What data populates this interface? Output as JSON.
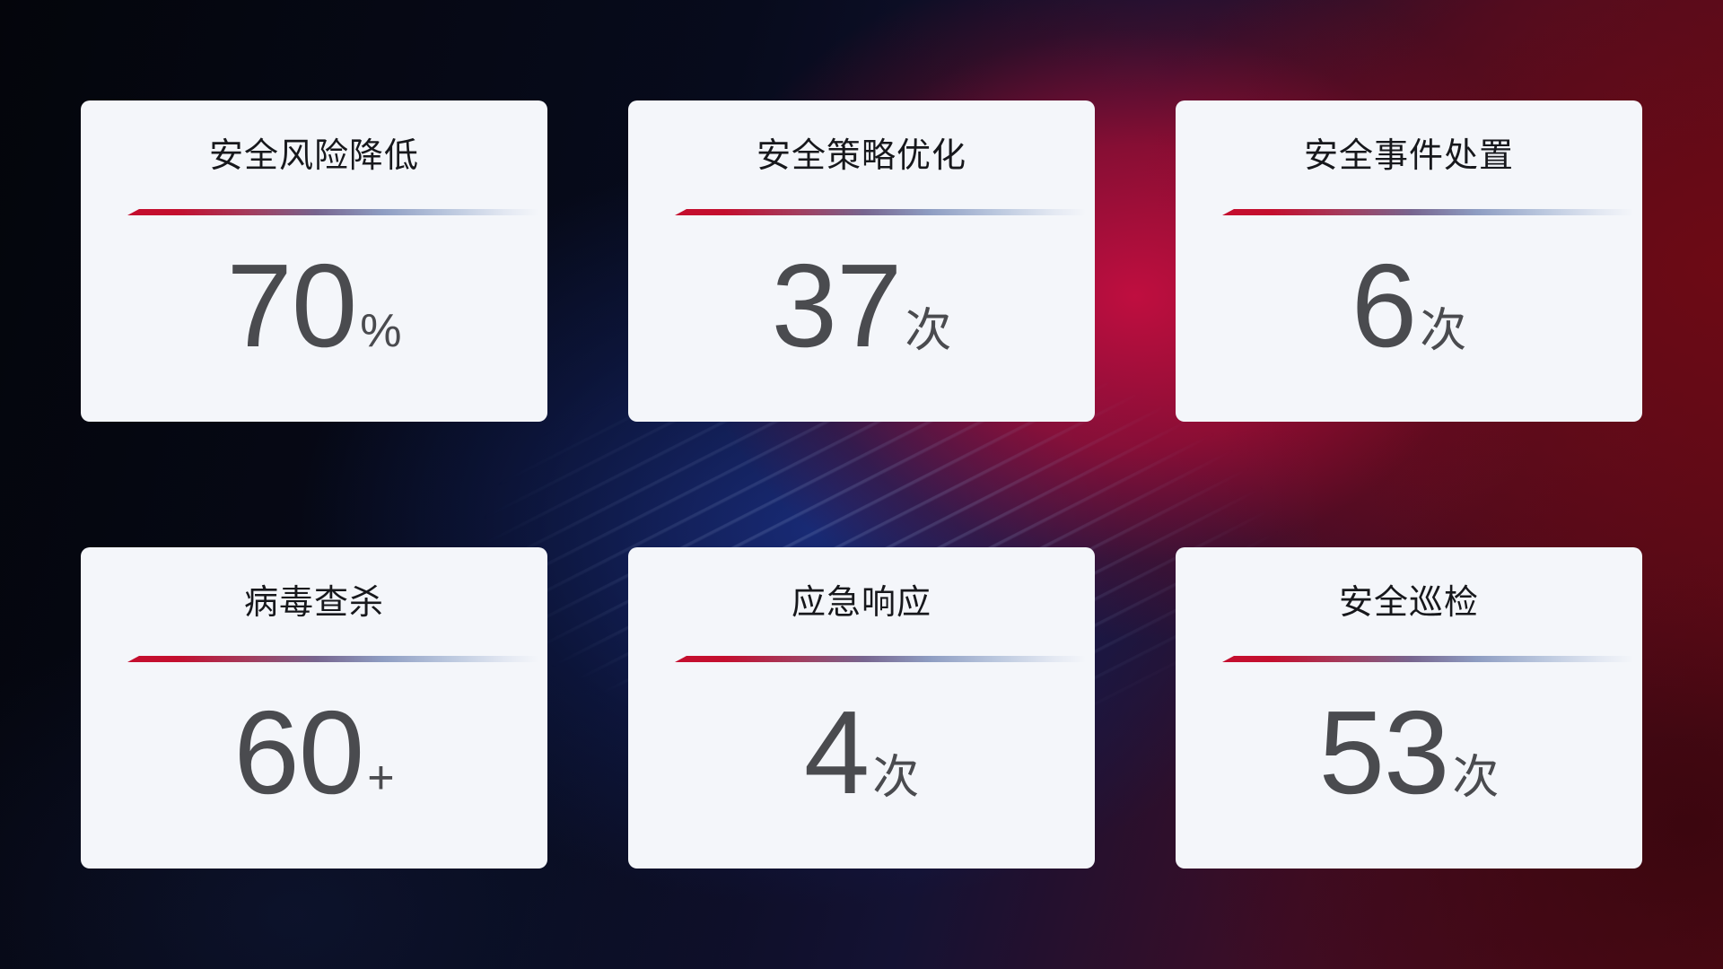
{
  "dashboard": {
    "cards": [
      {
        "title": "安全风险降低",
        "value": "70",
        "unit": "%"
      },
      {
        "title": "安全策略优化",
        "value": "37",
        "unit": "次"
      },
      {
        "title": "安全事件处置",
        "value": "6",
        "unit": "次"
      },
      {
        "title": "病毒查杀",
        "value": "60",
        "unit": "+"
      },
      {
        "title": "应急响应",
        "value": "4",
        "unit": "次"
      },
      {
        "title": "安全巡检",
        "value": "53",
        "unit": "次"
      }
    ],
    "colors": {
      "accent_red": "#c40e2e",
      "divider_fade_end": "#e3e8f2",
      "card_background": "#f4f6fa",
      "title_text": "#17181c",
      "value_text": "#4a4b4f",
      "background_dark_navy": "#070b1c",
      "background_blue_glow": "#16256b",
      "background_crimson_glow": "#c80e40",
      "background_dark_red": "#6b0a13"
    }
  }
}
